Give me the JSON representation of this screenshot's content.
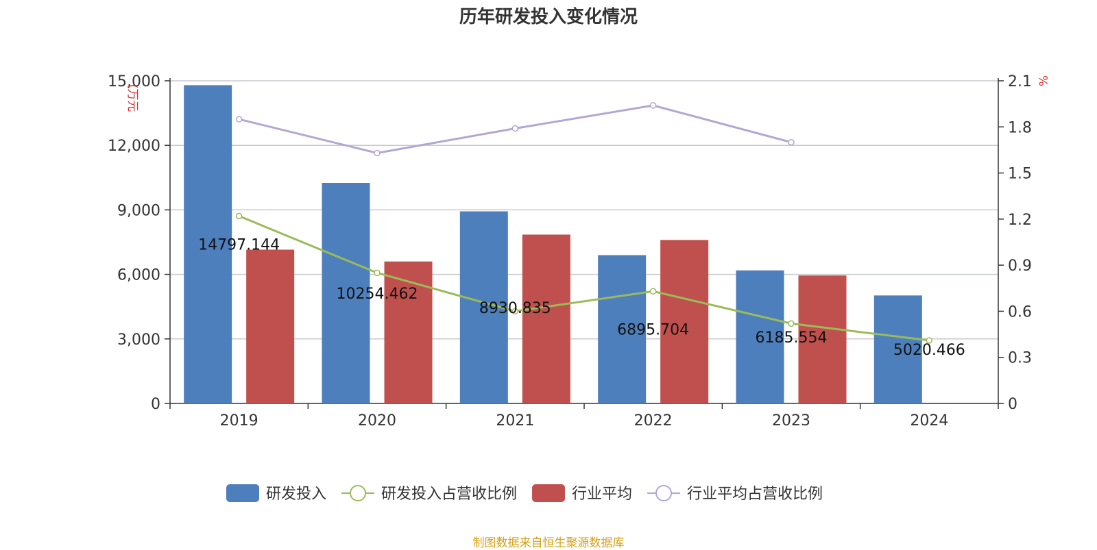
{
  "chart_data": {
    "type": "bar",
    "title": "历年研发投入变化情况",
    "categories": [
      "2019",
      "2020",
      "2021",
      "2022",
      "2023",
      "2024"
    ],
    "y_left_unit": "(万元",
    "y_right_unit": "%",
    "y_left_ticks": [
      "0",
      "3,000",
      "6,000",
      "9,000",
      "12,000",
      "15,000"
    ],
    "y_right_ticks": [
      "0",
      "0.3",
      "0.6",
      "0.9",
      "1.2",
      "1.5",
      "1.8",
      "2.1"
    ],
    "ylim_left": [
      0,
      15000
    ],
    "ylim_right": [
      0,
      2.1
    ],
    "grid": true,
    "legend_position": "bottom",
    "series": [
      {
        "name": "研发投入",
        "type": "bar",
        "axis": "left",
        "color": "#4e7fbd",
        "values": [
          14797.144,
          10254.462,
          8930.835,
          6895.704,
          6185.554,
          5020.466
        ],
        "labels": [
          "14797.144",
          "10254.462",
          "8930.835",
          "6895.704",
          "6185.554",
          "5020.466"
        ]
      },
      {
        "name": "研发投入占营收比例",
        "type": "line",
        "axis": "right",
        "color": "#9bbb59",
        "values": [
          1.22,
          0.85,
          0.6,
          0.73,
          0.52,
          0.41
        ]
      },
      {
        "name": "行业平均",
        "type": "bar",
        "axis": "left",
        "color": "#c0504d",
        "values": [
          7150,
          6600,
          7850,
          7600,
          5950,
          null
        ]
      },
      {
        "name": "行业平均占营收比例",
        "type": "line",
        "axis": "right",
        "color": "#b3a6d3",
        "values": [
          1.85,
          1.63,
          1.79,
          1.94,
          1.7,
          null
        ]
      }
    ]
  },
  "source": "制图数据来自恒生聚源数据库"
}
